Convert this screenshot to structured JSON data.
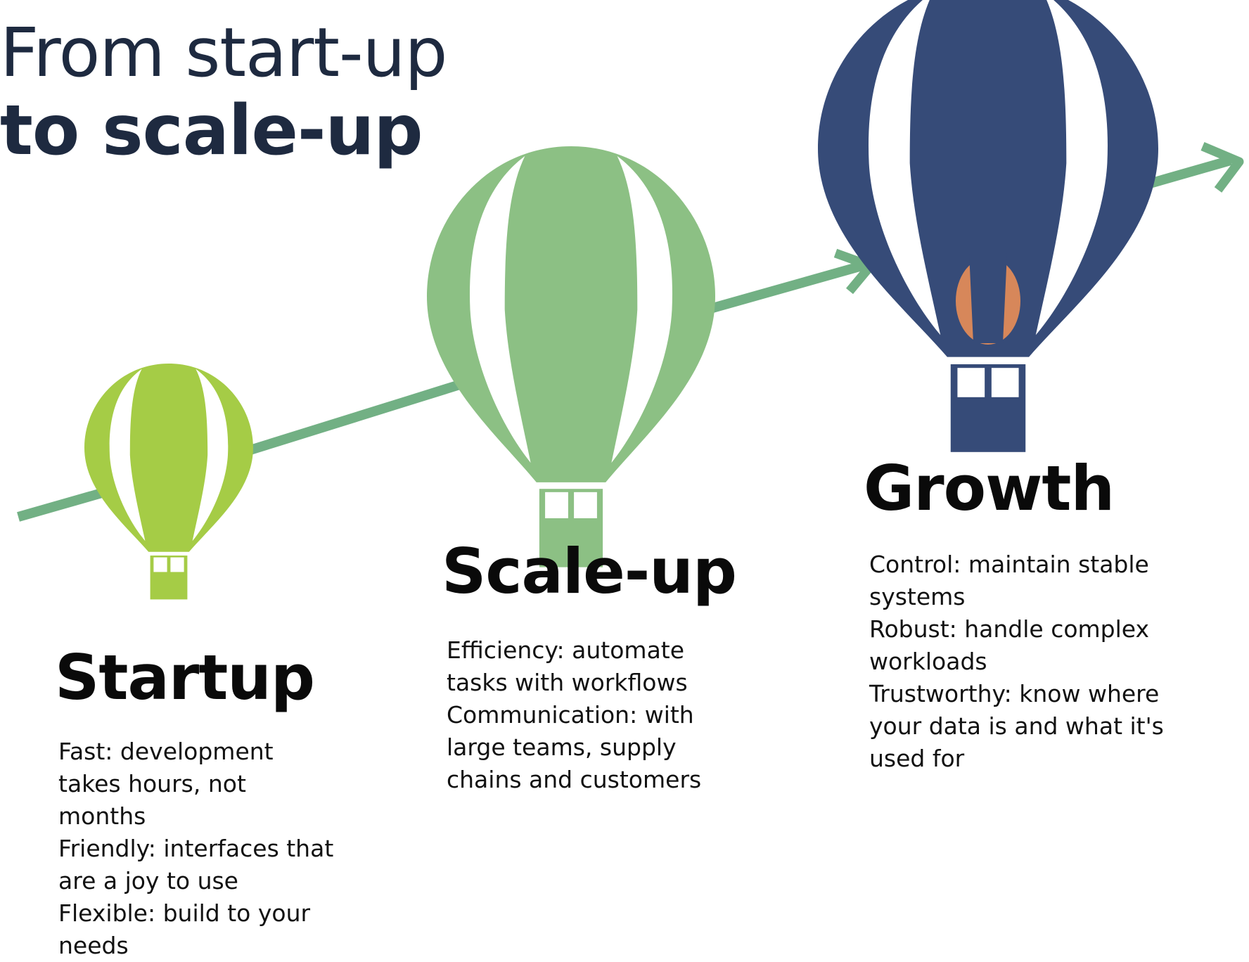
{
  "title": {
    "line1": "From start-up",
    "line2": "to scale-up"
  },
  "colors": {
    "title_text": "#1e2a40",
    "arrow": "#72b084",
    "startup_balloon": "#a5cc46",
    "scaleup_balloon": "#8cc084",
    "growth_balloon": "#364b78",
    "growth_flame": "#e08a58"
  },
  "stages": {
    "startup": {
      "heading": "Startup",
      "points": [
        "Fast: development takes hours, not months",
        "Friendly: interfaces that are a joy to use",
        "Flexible: build to your needs"
      ]
    },
    "scaleup": {
      "heading": "Scale-up",
      "points": [
        "Efficiency: automate tasks with workflows",
        "Communication: with large teams, supply chains and customers"
      ]
    },
    "growth": {
      "heading": "Growth",
      "points": [
        "Control: maintain stable systems",
        "Robust: handle complex workloads",
        "Trustworthy: know where your data is and what it's used for"
      ]
    }
  }
}
